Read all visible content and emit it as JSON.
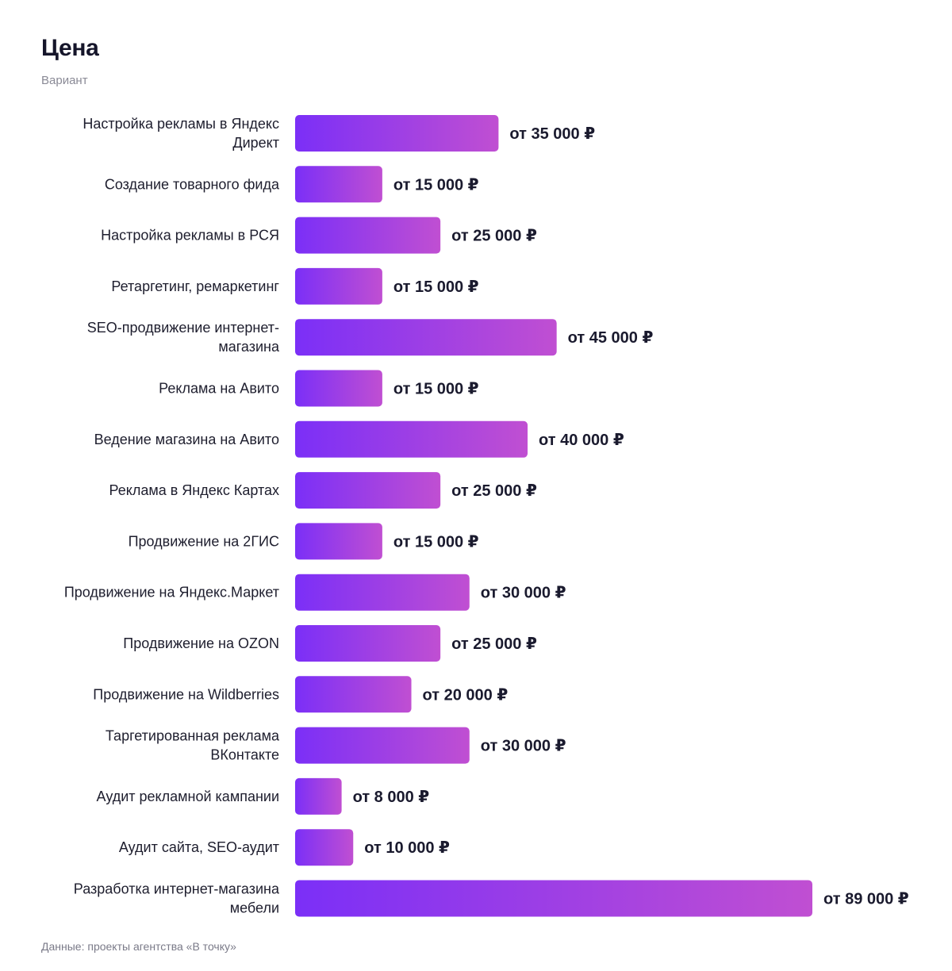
{
  "header": {
    "title": "Цена",
    "subtitle": "Вариант"
  },
  "footer": {
    "source": "Данные: проекты агентства «В точку»"
  },
  "colors": {
    "bar_start": "#7b2ff7",
    "bar_end": "#c04fd2",
    "text": "#1a1a2e"
  },
  "chart_data": {
    "type": "bar",
    "orientation": "horizontal",
    "title": "Цена",
    "subtitle": "Вариант",
    "xlim": [
      0,
      89000
    ],
    "grid": false,
    "legend": "none",
    "categories": [
      [
        "Настройка рекламы в Яндекс",
        "Директ"
      ],
      [
        "Создание товарного фида"
      ],
      [
        "Настройка рекламы в РСЯ"
      ],
      [
        "Ретаргетинг, ремаркетинг"
      ],
      [
        "SEO-продвижение интернет-",
        "магазина"
      ],
      [
        "Реклама на Авито"
      ],
      [
        "Ведение магазина на Авито"
      ],
      [
        "Реклама в Яндекс Картах"
      ],
      [
        "Продвижение на 2ГИС"
      ],
      [
        "Продвижение на Яндекс.Маркет"
      ],
      [
        "Продвижение на OZON"
      ],
      [
        "Продвижение на Wildberries"
      ],
      [
        "Таргетированная реклама",
        "ВКонтакте"
      ],
      [
        "Аудит рекламной кампании"
      ],
      [
        "Аудит сайта, SEO-аудит"
      ],
      [
        "Разработка интернет-магазина",
        "мебели"
      ]
    ],
    "values": [
      35000,
      15000,
      25000,
      15000,
      45000,
      15000,
      40000,
      25000,
      15000,
      30000,
      25000,
      20000,
      30000,
      8000,
      10000,
      89000
    ],
    "value_labels": [
      "от 35 000 ₽",
      "от 15 000 ₽",
      "от 25 000 ₽",
      "от 15 000 ₽",
      "от 45 000 ₽",
      "от 15 000 ₽",
      "от 40 000 ₽",
      "от 25 000 ₽",
      "от 15 000 ₽",
      "от 30 000 ₽",
      "от 25 000 ₽",
      "от 20 000 ₽",
      "от 30 000 ₽",
      "от 8 000 ₽",
      "от 10 000 ₽",
      "от 89 000 ₽"
    ]
  }
}
